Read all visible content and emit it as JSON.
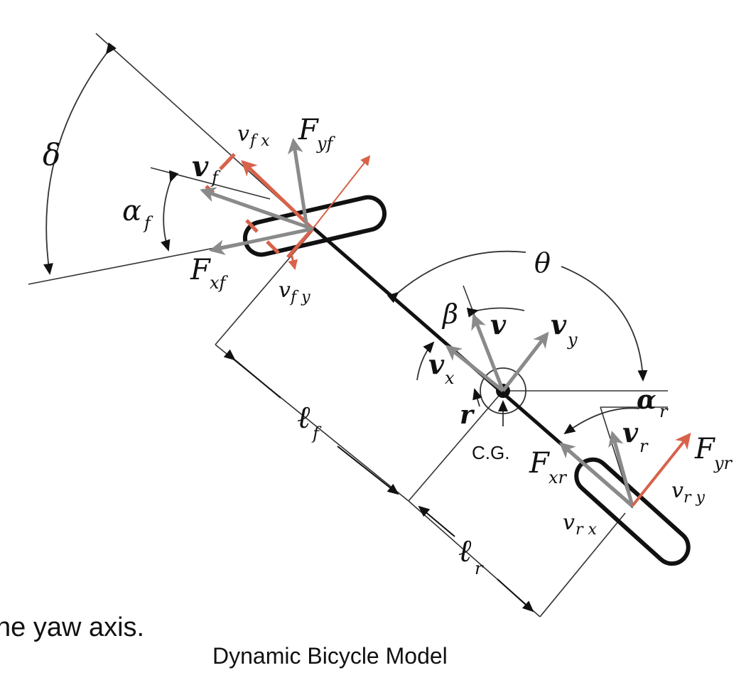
{
  "text_fragment": "he yaw axis.",
  "caption": "Dynamic Bicycle Model",
  "labels": {
    "delta": "δ",
    "theta": "θ",
    "beta": "β",
    "alpha": "α",
    "alpha_f_sub": "f",
    "alpha_r_sub": "r",
    "v": "v",
    "v_f_sub": "f",
    "v_x_sub": "x",
    "v_y_sub": "y",
    "v_r_sub": "r",
    "F": "F",
    "F_yf_sub": "yf",
    "F_xf_sub": "xf",
    "F_xr_sub": "xr",
    "F_yr_sub": "yr",
    "v_fx": "v",
    "v_fx_sub": "f x",
    "v_fy": "v",
    "v_fy_sub": "f y",
    "v_rx": "v",
    "v_rx_sub": "r x",
    "v_ry": "v",
    "v_ry_sub": "r y",
    "r": "r",
    "cg": "C.G.",
    "l_f": "ℓ",
    "l_f_sub": "f",
    "l_r": "ℓ",
    "l_r_sub": "r"
  },
  "colors": {
    "ink": "#111111",
    "gray_vector": "#8a8a8a",
    "red_vector": "#d8624a"
  }
}
